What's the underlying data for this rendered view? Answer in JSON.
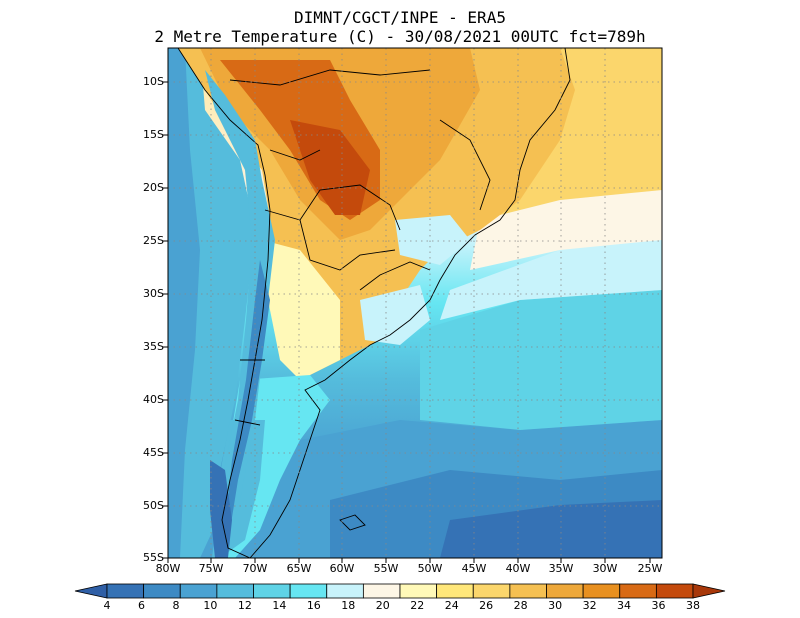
{
  "title": {
    "line1": "DIMNT/CGCT/INPE -  ERA5",
    "line2": "2 Metre Temperature (C) -  30/08/2021 00UTC fct=789h"
  },
  "map": {
    "lat_labels": [
      "10S",
      "15S",
      "20S",
      "25S",
      "30S",
      "35S",
      "40S",
      "45S",
      "50S",
      "55S"
    ],
    "lon_labels": [
      "80W",
      "75W",
      "70W",
      "65W",
      "60W",
      "55W",
      "50W",
      "45W",
      "40W",
      "35W",
      "30W",
      "25W"
    ],
    "lat_range": [
      -55,
      -8
    ],
    "lon_range": [
      -80,
      -25
    ],
    "grid": "dotted"
  },
  "colorbar": {
    "labels": [
      "4",
      "6",
      "8",
      "10",
      "12",
      "14",
      "16",
      "18",
      "20",
      "22",
      "24",
      "26",
      "28",
      "30",
      "32",
      "34",
      "36",
      "38"
    ],
    "colors": [
      "#2f5fa6",
      "#3572b5",
      "#3d8ac4",
      "#4aa2d2",
      "#55bcdc",
      "#5fd3e6",
      "#66e6f2",
      "#c8f3fb",
      "#fdf6e6",
      "#fff9b8",
      "#ffe77a",
      "#fbd66c",
      "#f5c052",
      "#eea83a",
      "#e89020",
      "#d86a15",
      "#c44a0c",
      "#a8380a"
    ]
  }
}
